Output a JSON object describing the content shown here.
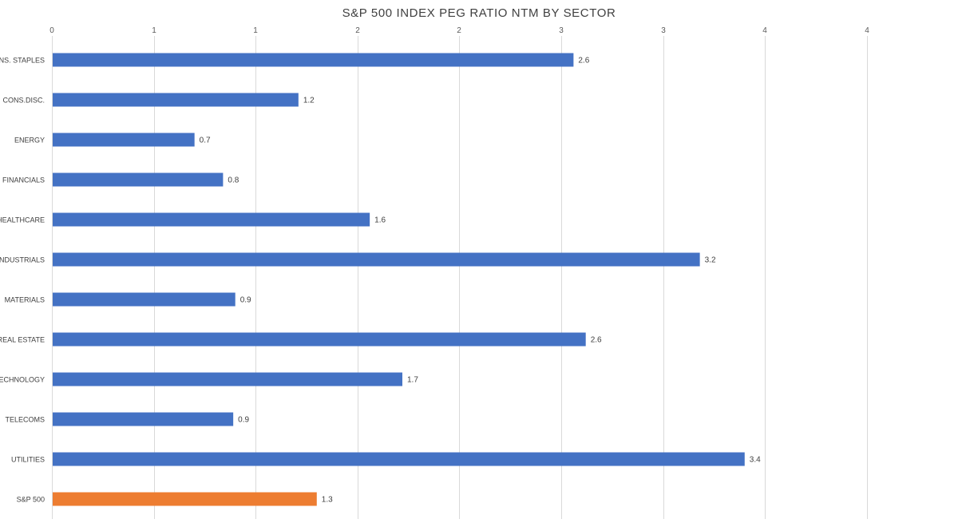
{
  "chart_data": {
    "type": "bar",
    "orientation": "horizontal",
    "title": "S&P 500 INDEX PEG RATIO NTM BY SECTOR",
    "xlim": [
      0,
      4.4
    ],
    "x_ticks": [
      0,
      0.5,
      1.0,
      1.5,
      2.0,
      2.5,
      3.0,
      3.5,
      4.0
    ],
    "x_tick_labels": [
      "0",
      "1",
      "1",
      "2",
      "2",
      "3",
      "3",
      "4",
      "4"
    ],
    "x_axis_position": "top",
    "grid": true,
    "categories": [
      "CONS. STAPLES",
      "CONS.DISC.",
      "ENERGY",
      "FINANCIALS",
      "HEALTHCARE",
      "INDUSTRIALS",
      "MATERIALS",
      "REAL ESTATE",
      "TECHNOLOGY",
      "TELECOMS",
      "UTILITIES",
      "S&P 500"
    ],
    "values": [
      2.56,
      1.21,
      0.7,
      0.84,
      1.56,
      3.18,
      0.9,
      2.62,
      1.72,
      0.89,
      3.4,
      1.3
    ],
    "data_labels": [
      "2.6",
      "1.2",
      "0.7",
      "0.8",
      "1.6",
      "3.2",
      "0.9",
      "2.6",
      "1.7",
      "0.9",
      "3.4",
      "1.3"
    ],
    "bar_colors": [
      "#4472c4",
      "#4472c4",
      "#4472c4",
      "#4472c4",
      "#4472c4",
      "#4472c4",
      "#4472c4",
      "#4472c4",
      "#4472c4",
      "#4472c4",
      "#4472c4",
      "#ed7d31"
    ]
  }
}
